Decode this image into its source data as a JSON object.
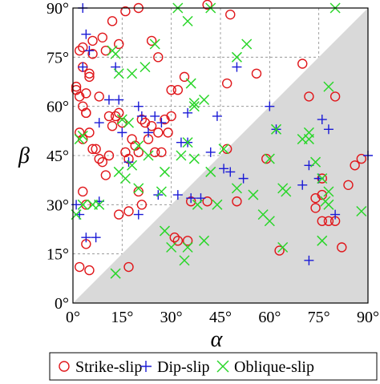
{
  "chart_data": {
    "type": "scatter",
    "title": "",
    "xlabel": "α",
    "ylabel": "β",
    "xlim": [
      0,
      90
    ],
    "ylim": [
      0,
      90
    ],
    "xticks": [
      "0°",
      "15°",
      "30°",
      "45°",
      "60°",
      "75°",
      "90°"
    ],
    "yticks": [
      "0°",
      "15°",
      "30°",
      "45°",
      "60°",
      "75°",
      "90°"
    ],
    "grid": true,
    "shaded_region": "β < α (lower-right triangle, light gray)",
    "legend_position": "bottom, outside plot",
    "series": [
      {
        "name": "Strike-slip",
        "marker": "circle",
        "color": "#e0161a",
        "points": [
          [
            1,
            65
          ],
          [
            2,
            77
          ],
          [
            3,
            72
          ],
          [
            3,
            78
          ],
          [
            4,
            64
          ],
          [
            5,
            70
          ],
          [
            5,
            69
          ],
          [
            6,
            80
          ],
          [
            6,
            76
          ],
          [
            8,
            63
          ],
          [
            9,
            81
          ],
          [
            10,
            77
          ],
          [
            12,
            86
          ],
          [
            14,
            79
          ],
          [
            16,
            89
          ],
          [
            20,
            90
          ],
          [
            24,
            80
          ],
          [
            26,
            75
          ],
          [
            30,
            65
          ],
          [
            32,
            65
          ],
          [
            34,
            69
          ],
          [
            41,
            91
          ],
          [
            47,
            67
          ],
          [
            48,
            88
          ],
          [
            56,
            70
          ],
          [
            70,
            73
          ],
          [
            72,
            63
          ],
          [
            80,
            63
          ],
          [
            1,
            66
          ],
          [
            2,
            63
          ],
          [
            3,
            60
          ],
          [
            4,
            58
          ],
          [
            2,
            52
          ],
          [
            3,
            50
          ],
          [
            4,
            58
          ],
          [
            5,
            52
          ],
          [
            6,
            47
          ],
          [
            7,
            47
          ],
          [
            8,
            44
          ],
          [
            9,
            43
          ],
          [
            10,
            39
          ],
          [
            11,
            45
          ],
          [
            11,
            57
          ],
          [
            12,
            54
          ],
          [
            13,
            57
          ],
          [
            14,
            58
          ],
          [
            15,
            55
          ],
          [
            16,
            46
          ],
          [
            17,
            44
          ],
          [
            18,
            50
          ],
          [
            19,
            48
          ],
          [
            20,
            46
          ],
          [
            21,
            56
          ],
          [
            22,
            55
          ],
          [
            23,
            50
          ],
          [
            24,
            54
          ],
          [
            25,
            46
          ],
          [
            26,
            52
          ],
          [
            27,
            46
          ],
          [
            28,
            56
          ],
          [
            29,
            52
          ],
          [
            30,
            57
          ],
          [
            17,
            28
          ],
          [
            21,
            30
          ],
          [
            20,
            34
          ],
          [
            14,
            27
          ],
          [
            3,
            34
          ],
          [
            4,
            18
          ],
          [
            2,
            11
          ],
          [
            5,
            10
          ],
          [
            32,
            19
          ],
          [
            41,
            31
          ],
          [
            50,
            31
          ],
          [
            59,
            44
          ],
          [
            63,
            16
          ],
          [
            76,
            38
          ],
          [
            78,
            25
          ],
          [
            80,
            25
          ],
          [
            82,
            17
          ],
          [
            84,
            36
          ],
          [
            86,
            42
          ],
          [
            88,
            44
          ],
          [
            74,
            32
          ],
          [
            74,
            29
          ],
          [
            76,
            33
          ],
          [
            76,
            25
          ],
          [
            36,
            31
          ],
          [
            4,
            30
          ],
          [
            35,
            19
          ],
          [
            17,
            11
          ],
          [
            31,
            20
          ],
          [
            47,
            47
          ]
        ]
      },
      {
        "name": "Dip-slip",
        "marker": "plus",
        "color": "#1a1ad6",
        "points": [
          [
            3,
            90
          ],
          [
            4,
            82
          ],
          [
            3,
            72
          ],
          [
            5,
            77
          ],
          [
            13,
            72
          ],
          [
            14,
            62
          ],
          [
            11,
            62
          ],
          [
            8,
            55
          ],
          [
            15,
            52
          ],
          [
            17,
            43
          ],
          [
            20,
            60
          ],
          [
            21,
            57
          ],
          [
            23,
            52
          ],
          [
            25,
            57
          ],
          [
            27,
            55
          ],
          [
            33,
            49
          ],
          [
            35,
            49
          ],
          [
            35,
            58
          ],
          [
            42,
            46
          ],
          [
            44,
            57
          ],
          [
            46,
            41
          ],
          [
            48,
            40
          ],
          [
            50,
            72
          ],
          [
            60,
            60
          ],
          [
            62,
            53
          ],
          [
            70,
            36
          ],
          [
            72,
            42
          ],
          [
            75,
            38
          ],
          [
            76,
            56
          ],
          [
            78,
            53
          ],
          [
            80,
            27
          ],
          [
            72,
            13
          ],
          [
            90,
            45
          ],
          [
            8,
            31
          ],
          [
            20,
            27
          ],
          [
            26,
            33
          ],
          [
            32,
            33
          ],
          [
            36,
            32
          ],
          [
            39,
            32
          ],
          [
            1,
            30
          ],
          [
            2,
            27
          ],
          [
            4,
            20
          ],
          [
            7,
            20
          ],
          [
            52,
            38
          ]
        ]
      },
      {
        "name": "Oblique-slip",
        "marker": "x",
        "color": "#2ad62a",
        "points": [
          [
            12,
            77
          ],
          [
            13,
            76
          ],
          [
            14,
            70
          ],
          [
            18,
            70
          ],
          [
            22,
            72
          ],
          [
            25,
            79
          ],
          [
            32,
            90
          ],
          [
            35,
            86
          ],
          [
            42,
            90
          ],
          [
            50,
            75
          ],
          [
            53,
            79
          ],
          [
            36,
            67
          ],
          [
            37,
            61
          ],
          [
            40,
            62
          ],
          [
            37,
            60
          ],
          [
            15,
            56
          ],
          [
            17,
            55
          ],
          [
            16,
            38
          ],
          [
            18,
            42
          ],
          [
            14,
            40
          ],
          [
            20,
            35
          ],
          [
            27,
            34
          ],
          [
            28,
            40
          ],
          [
            33,
            45
          ],
          [
            35,
            49
          ],
          [
            37,
            44
          ],
          [
            42,
            40
          ],
          [
            44,
            30
          ],
          [
            50,
            35
          ],
          [
            55,
            33
          ],
          [
            60,
            44
          ],
          [
            62,
            53
          ],
          [
            64,
            35
          ],
          [
            65,
            34
          ],
          [
            70,
            50
          ],
          [
            72,
            50
          ],
          [
            72,
            52
          ],
          [
            74,
            43
          ],
          [
            76,
            38
          ],
          [
            78,
            30
          ],
          [
            78,
            66
          ],
          [
            80,
            90
          ],
          [
            88,
            28
          ],
          [
            1,
            27
          ],
          [
            3,
            30
          ],
          [
            2,
            50
          ],
          [
            3,
            51
          ],
          [
            6,
            30
          ],
          [
            8,
            30
          ],
          [
            28,
            22
          ],
          [
            30,
            17
          ],
          [
            34,
            13
          ],
          [
            35,
            17
          ],
          [
            38,
            30
          ],
          [
            40,
            19
          ],
          [
            58,
            27
          ],
          [
            60,
            25
          ],
          [
            64,
            17
          ],
          [
            76,
            19
          ],
          [
            77,
            31
          ],
          [
            13,
            9
          ],
          [
            78,
            34
          ],
          [
            46,
            47
          ],
          [
            20,
            48
          ],
          [
            23,
            45
          ]
        ]
      }
    ]
  }
}
